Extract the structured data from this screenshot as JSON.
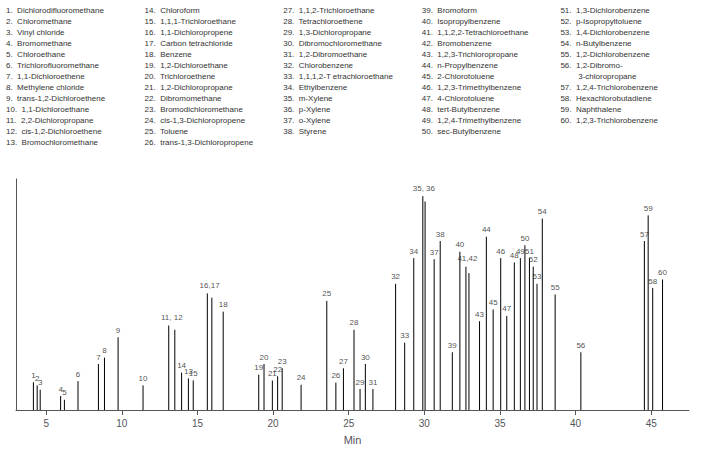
{
  "chart_data": {
    "type": "stem",
    "xlabel": "Min",
    "x": [
      4.15,
      4.4,
      4.6,
      5.95,
      6.2,
      7.1,
      8.45,
      8.85,
      9.75,
      11.4,
      13.1,
      13.5,
      13.95,
      14.4,
      14.72,
      15.65,
      15.95,
      16.7,
      19.05,
      19.4,
      19.95,
      20.3,
      20.6,
      21.85,
      23.55,
      24.15,
      24.65,
      25.35,
      25.75,
      26.1,
      26.6,
      28.1,
      28.7,
      29.3,
      29.9,
      30.05,
      30.65,
      31.05,
      31.85,
      32.35,
      32.75,
      32.95,
      33.65,
      34.1,
      34.55,
      35.05,
      35.45,
      35.95,
      36.35,
      36.65,
      36.95,
      37.2,
      37.45,
      37.8,
      38.65,
      40.35,
      44.55,
      45.1,
      44.8,
      45.75
    ],
    "values": [
      0.13,
      0.115,
      0.095,
      0.065,
      0.048,
      0.135,
      0.215,
      0.245,
      0.34,
      0.115,
      0.395,
      0.375,
      0.175,
      0.148,
      0.138,
      0.545,
      0.525,
      0.46,
      0.165,
      0.215,
      0.138,
      0.158,
      0.195,
      0.118,
      0.51,
      0.128,
      0.195,
      0.375,
      0.098,
      0.215,
      0.098,
      0.59,
      0.315,
      0.71,
      1.0,
      0.975,
      0.705,
      0.79,
      0.27,
      0.74,
      0.67,
      0.64,
      0.415,
      0.81,
      0.47,
      0.71,
      0.44,
      0.69,
      0.71,
      0.77,
      0.71,
      0.67,
      0.59,
      0.895,
      0.54,
      0.27,
      0.79,
      0.57,
      0.91,
      0.61
    ],
    "labels": [
      "1",
      "2",
      "3",
      "4",
      "5",
      "6",
      "7",
      "8",
      "9",
      "10",
      null,
      null,
      "14",
      "13",
      "15",
      null,
      null,
      "18",
      "19",
      "20",
      "21",
      "22",
      "23",
      "24",
      "25",
      "26",
      "27",
      "28",
      "29",
      "30",
      "31",
      "32",
      "33",
      "34",
      null,
      null,
      "37",
      "38",
      "39",
      "40",
      null,
      null,
      "43",
      "44",
      "45",
      "46",
      "47",
      "48",
      "49",
      "50",
      "51",
      "52",
      "53",
      "54",
      "55",
      "56",
      "57",
      "58",
      "59",
      "60"
    ],
    "annotations": [
      {
        "text": "35, 36",
        "x": 29.97,
        "y": 1.005
      },
      {
        "text": "11, 12",
        "x": 13.3,
        "y": 0.4
      },
      {
        "text": "16,17",
        "x": 15.8,
        "y": 0.55
      },
      {
        "text": "41,42",
        "x": 32.85,
        "y": 0.675
      }
    ],
    "key": [
      [
        "1.  Dichlorodifluoromethane",
        "2.  Chloromethane",
        "3.  Vinyl chloride",
        "4.  Bromomethane",
        "5.  Chloroethane",
        "6.  Trichlorofluoromethane",
        "7.  1,1-Dichloroethene",
        "8.  Methylene chloride",
        "9.  trans-1,2-Dichloroethene",
        "10.  1,1-Dichloroethane",
        "11.  2,2-Dichloropropane",
        "12.  cis-1,2-Dichloroethene",
        "13.  Bromochloromethane"
      ],
      [
        "14.  Chloroform",
        "15.  1,1,1-Trichloroethane",
        "16.  1,1-Dichloropropene",
        "17.  Carbon tetrachloride",
        "18.  Benzene",
        "19.  1,2-Dichloroethane",
        "20.  Trichloroethene",
        "21.  1,2-Dichloropropane",
        "22.  Dibromomethane",
        "23.  Bromodichloromethane",
        "24.  cis-1,3-Dichloropropene",
        "25.  Toluene",
        "26.  trans-1,3-Dichloropropene"
      ],
      [
        "27.  1,1,2-Trichloroethane",
        "28.  Tetrachloroethene",
        "29.  1,3-Dichloropropane",
        "30.  Dibromochloromethane",
        "31.  1,2-Dibromoethane",
        "32.  Chlorobenzene",
        "33.  1,1,1,2-T etrachloroethane",
        "34.  Ethylbenzene",
        "35.  m-Xylene",
        "36.  p-Xylene",
        "37.  o-Xylene",
        "38.  Styrene"
      ],
      [
        "39.  Bromoform",
        "40.  Isopropylbenzene",
        "41.  1,1,2,2-Tetrachloroethane",
        "42.  Bromobenzene",
        "43.  1,2,3-Trichloropropane",
        "44.  n-Propylbenzene",
        "45.  2-Chlorotoluene",
        "46.  1,2,3-Trimethylbenzene",
        "47.  4-Chlorotoluene",
        "48.  tert-Butylbenzene",
        "49.  1,2,4-Trimethylbenzene",
        "50.  sec-Butylbenzene"
      ],
      [
        "51.  1,3-Dichlorobenzene",
        "52.  p-Isopropyltoluene",
        "53.  1,4-Dichlorobenzene",
        "54.  n-Butylbenzene",
        "55.  1,2-Dichlorobenzene",
        "56.  1,2-Dibromo-",
        "        3-chloropropane",
        "57.  1,2,4-Trichlorobenzene",
        "58.  Hexachlorobutadiene",
        "59.  Naphthalene",
        "60.  1,2,3-Trichlorobenzene"
      ]
    ],
    "xlim": [
      3.0,
      47.5
    ],
    "ylim": [
      0,
      1.08
    ],
    "xticks": [
      5,
      10,
      15,
      20,
      25,
      30,
      35,
      40,
      45
    ],
    "yticks": [],
    "tick_labels": "x",
    "grid": false,
    "color": "#000000"
  }
}
